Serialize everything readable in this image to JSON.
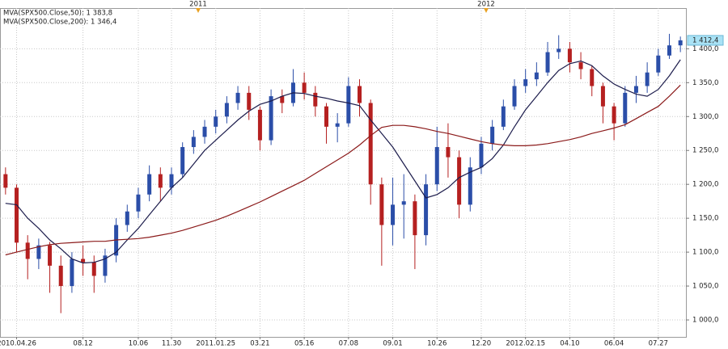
{
  "chart_data": {
    "type": "candlestick",
    "categories": [
      null,
      "2010.04.26",
      null,
      null,
      null,
      null,
      null,
      "08.12",
      null,
      null,
      null,
      null,
      "10.06",
      null,
      null,
      "11.30",
      null,
      null,
      null,
      "2011.01.25",
      null,
      null,
      null,
      "03.21",
      null,
      null,
      null,
      "05.16",
      null,
      null,
      null,
      "07.08",
      null,
      null,
      null,
      "09.01",
      null,
      null,
      null,
      "10.26",
      null,
      null,
      null,
      "12.20",
      null,
      null,
      null,
      "2012.02.15",
      null,
      null,
      null,
      "04.10",
      null,
      null,
      null,
      "06.04",
      null,
      null,
      null,
      "07.27",
      null,
      null
    ],
    "open": [
      1215,
      1195,
      1114,
      1090,
      1110,
      1080,
      1050,
      1090,
      1085,
      1065,
      1095,
      1140,
      1160,
      1185,
      1215,
      1195,
      1215,
      1255,
      1270,
      1285,
      1300,
      1320,
      1335,
      1310,
      1265,
      1330,
      1320,
      1350,
      1335,
      1315,
      1285,
      1290,
      1345,
      1320,
      1200,
      1140,
      1170,
      1175,
      1125,
      1200,
      1255,
      1240,
      1170,
      1225,
      1260,
      1285,
      1315,
      1345,
      1355,
      1365,
      1395,
      1400,
      1380,
      1370,
      1345,
      1315,
      1290,
      1335,
      1345,
      1365,
      1390,
      1405
    ],
    "high": [
      1225,
      1200,
      1125,
      1120,
      1115,
      1095,
      1100,
      1110,
      1095,
      1105,
      1150,
      1170,
      1195,
      1228,
      1225,
      1225,
      1262,
      1280,
      1295,
      1310,
      1330,
      1345,
      1345,
      1315,
      1340,
      1340,
      1370,
      1365,
      1345,
      1320,
      1305,
      1358,
      1355,
      1325,
      1210,
      1210,
      1215,
      1185,
      1215,
      1285,
      1290,
      1250,
      1240,
      1270,
      1295,
      1325,
      1355,
      1370,
      1380,
      1410,
      1420,
      1410,
      1395,
      1375,
      1350,
      1320,
      1345,
      1360,
      1380,
      1400,
      1422,
      1418
    ],
    "low": [
      1185,
      1100,
      1060,
      1075,
      1040,
      1010,
      1040,
      1065,
      1040,
      1055,
      1085,
      1130,
      1150,
      1175,
      1175,
      1185,
      1210,
      1245,
      1260,
      1275,
      1290,
      1310,
      1295,
      1250,
      1258,
      1305,
      1315,
      1325,
      1300,
      1260,
      1262,
      1285,
      1300,
      1170,
      1080,
      1110,
      1120,
      1075,
      1110,
      1190,
      1210,
      1150,
      1160,
      1215,
      1250,
      1280,
      1310,
      1335,
      1345,
      1360,
      1385,
      1365,
      1355,
      1330,
      1290,
      1265,
      1285,
      1320,
      1335,
      1360,
      1385,
      1395
    ],
    "close": [
      1195,
      1114,
      1090,
      1110,
      1080,
      1050,
      1090,
      1085,
      1065,
      1095,
      1140,
      1160,
      1185,
      1215,
      1195,
      1215,
      1255,
      1270,
      1285,
      1300,
      1320,
      1335,
      1310,
      1265,
      1330,
      1320,
      1350,
      1335,
      1315,
      1285,
      1290,
      1345,
      1320,
      1200,
      1140,
      1170,
      1175,
      1125,
      1200,
      1255,
      1240,
      1170,
      1225,
      1260,
      1285,
      1315,
      1345,
      1355,
      1365,
      1395,
      1400,
      1380,
      1370,
      1345,
      1315,
      1290,
      1335,
      1345,
      1365,
      1390,
      1405,
      1412.4
    ],
    "up_color": "#2b4ea8",
    "down_color": "#b52020",
    "series": [
      {
        "name": "MVA(SPX500.Close,50): 1 383,8",
        "color": "#1c1c4c",
        "values": [
          1172,
          1170,
          1150,
          1135,
          1118,
          1105,
          1090,
          1084,
          1085,
          1090,
          1100,
          1118,
          1135,
          1155,
          1175,
          1195,
          1210,
          1230,
          1250,
          1265,
          1280,
          1295,
          1308,
          1318,
          1323,
          1330,
          1335,
          1334,
          1330,
          1327,
          1323,
          1320,
          1316,
          1295,
          1275,
          1255,
          1230,
          1205,
          1180,
          1185,
          1195,
          1210,
          1218,
          1225,
          1238,
          1258,
          1285,
          1310,
          1330,
          1350,
          1368,
          1378,
          1382,
          1375,
          1360,
          1348,
          1340,
          1333,
          1330,
          1340,
          1360,
          1383.8
        ]
      },
      {
        "name": "MVA(SPX500.Close,200): 1 346,4",
        "color": "#8b1a1a",
        "values": [
          1096,
          1100,
          1104,
          1108,
          1111,
          1113,
          1114,
          1115,
          1116,
          1116,
          1118,
          1119,
          1120,
          1122,
          1125,
          1128,
          1132,
          1137,
          1142,
          1147,
          1153,
          1160,
          1167,
          1174,
          1182,
          1190,
          1198,
          1206,
          1216,
          1226,
          1236,
          1246,
          1258,
          1272,
          1284,
          1287,
          1287,
          1285,
          1282,
          1278,
          1275,
          1271,
          1267,
          1263,
          1260,
          1258,
          1257,
          1257,
          1258,
          1260,
          1263,
          1266,
          1270,
          1275,
          1279,
          1283,
          1288,
          1297,
          1306,
          1315,
          1330,
          1346.4
        ]
      }
    ],
    "last_price": {
      "value": 1412.4,
      "label": "1 412,4"
    },
    "annotations": [
      "2011",
      "2012"
    ],
    "ylim": [
      975,
      1460
    ],
    "yticks": [
      {
        "value": 1000,
        "label": "1 000,0"
      },
      {
        "value": 1050,
        "label": "1 050,0"
      },
      {
        "value": 1100,
        "label": "1 100,0"
      },
      {
        "value": 1150,
        "label": "1 150,0"
      },
      {
        "value": 1200,
        "label": "1 200,0"
      },
      {
        "value": 1250,
        "label": "1 250,0"
      },
      {
        "value": 1300,
        "label": "1 300,0"
      },
      {
        "value": 1350,
        "label": "1 350,0"
      },
      {
        "value": 1400,
        "label": "1 400,0"
      }
    ],
    "grid": true
  }
}
